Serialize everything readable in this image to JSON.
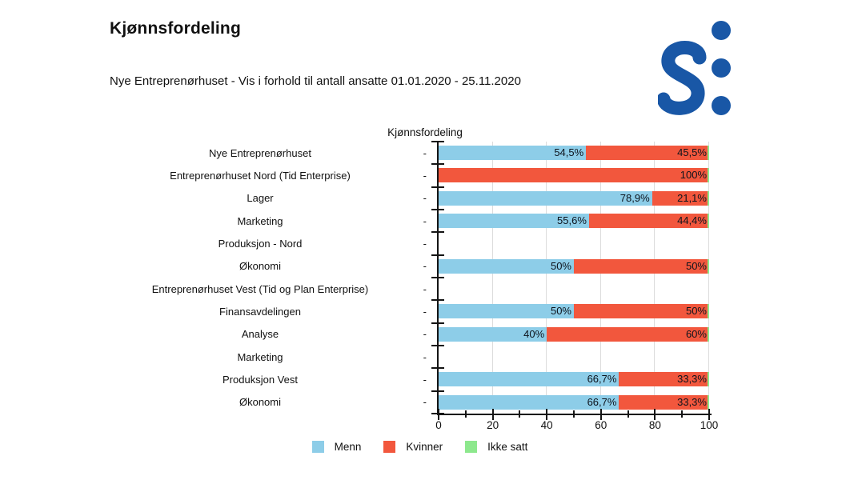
{
  "header": {
    "title": "Kjønnsfordeling",
    "subtitle": "Nye Entreprenørhuset - Vis i forhold til antall ansatte 01.01.2020 - 25.11.2020"
  },
  "logo": {
    "name": "simployer-logo",
    "color": "#1957A6"
  },
  "chart_data": {
    "type": "bar",
    "orientation": "horizontal",
    "stacked": true,
    "title": "Kjønnsfordeling",
    "xlabel": "",
    "ylabel": "",
    "xlim": [
      0,
      100
    ],
    "x_ticks": [
      0,
      20,
      40,
      60,
      80,
      100
    ],
    "x_minor_ticks": [
      10,
      30,
      50,
      70,
      90
    ],
    "grid": "vertical-major",
    "row_axis_label": "-",
    "legend_position": "bottom",
    "categories": [
      "Nye Entreprenørhuset",
      "Entreprenørhuset Nord (Tid Enterprise)",
      "Lager",
      "Marketing",
      "Produksjon - Nord",
      "Økonomi",
      "Entreprenørhuset Vest (Tid og Plan Enterprise)",
      "Finansavdelingen",
      "Analyse",
      "Marketing",
      "Produksjon Vest",
      "Økonomi"
    ],
    "series": [
      {
        "name": "Menn",
        "color": "#8DCDE8",
        "values": [
          54.5,
          0,
          78.9,
          55.6,
          null,
          50,
          null,
          50,
          40,
          null,
          66.7,
          66.7
        ],
        "labels": [
          "54,5%",
          "",
          "78,9%",
          "55,6%",
          "",
          "50%",
          "",
          "50%",
          "40%",
          "",
          "66,7%",
          "66,7%"
        ]
      },
      {
        "name": "Kvinner",
        "color": "#F2573D",
        "values": [
          45.5,
          100,
          21.1,
          44.4,
          null,
          50,
          null,
          50,
          60,
          null,
          33.3,
          33.3
        ],
        "labels": [
          "45,5%",
          "100%",
          "21,1%",
          "44,4%",
          "",
          "50%",
          "",
          "50%",
          "60%",
          "",
          "33,3%",
          "33,3%"
        ]
      },
      {
        "name": "Ikke satt",
        "color": "#8DE88D",
        "values": [
          0,
          0,
          0,
          0,
          null,
          0,
          null,
          0,
          0,
          null,
          0,
          0
        ],
        "labels": [
          "",
          "",
          "",
          "",
          "",
          "",
          "",
          "",
          "",
          "",
          "",
          ""
        ]
      }
    ],
    "legend": [
      {
        "label": "Menn",
        "color": "#8DCDE8"
      },
      {
        "label": "Kvinner",
        "color": "#F2573D"
      },
      {
        "label": "Ikke satt",
        "color": "#8DE88D"
      }
    ]
  }
}
